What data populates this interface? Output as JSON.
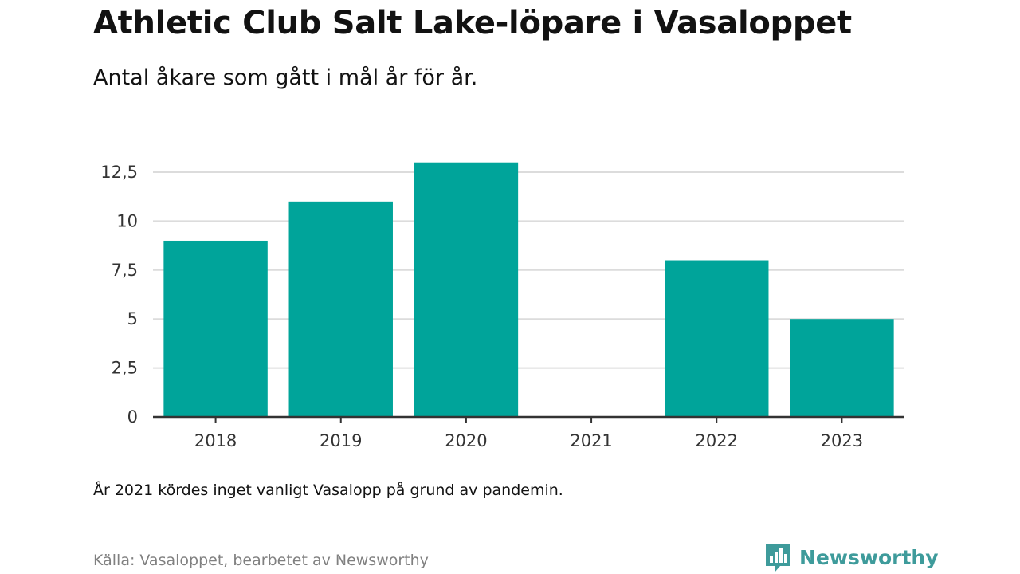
{
  "header": {
    "title": "Athletic Club Salt Lake-löpare i Vasaloppet",
    "subtitle": "Antal åkare som gått i mål år för år."
  },
  "chart_data": {
    "type": "bar",
    "title": "Athletic Club Salt Lake-löpare i Vasaloppet",
    "subtitle": "Antal åkare som gått i mål år för år.",
    "categories": [
      "2018",
      "2019",
      "2020",
      "2021",
      "2022",
      "2023"
    ],
    "values": [
      9,
      11,
      13,
      0,
      8,
      5
    ],
    "xlabel": "",
    "ylabel": "",
    "ylim": [
      0,
      12.5
    ],
    "yticks": [
      0,
      2.5,
      5,
      7.5,
      10,
      12.5
    ],
    "ytick_labels": [
      "0",
      "2,5",
      "5",
      "7,5",
      "10",
      "12,5"
    ],
    "grid": true,
    "legend": "none",
    "bar_color": "#00a49a"
  },
  "footer": {
    "note": "År 2021 kördes inget vanligt Vasalopp på grund av pandemin.",
    "source": "Källa: Vasaloppet, bearbetet av Newsworthy",
    "brand_name": "Newsworthy",
    "brand_icon": "newsworthy-logo-icon",
    "brand_color": "#3e9b9b"
  }
}
